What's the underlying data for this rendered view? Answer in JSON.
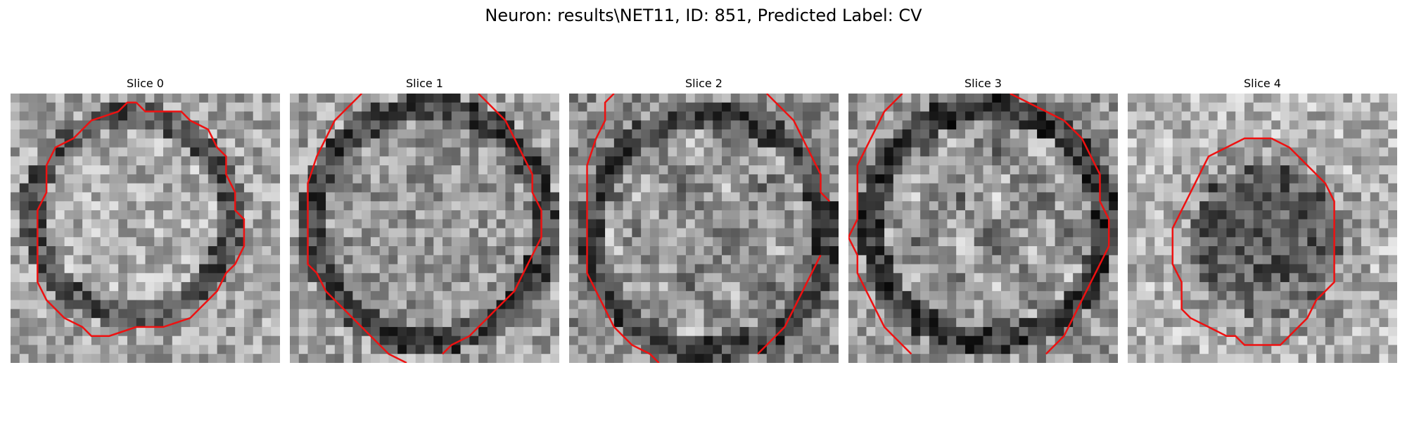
{
  "figure": {
    "title": "Neuron: results\\NET11, ID: 851, Predicted Label: CV",
    "contour_color": "#ee1111",
    "colormap": "gray",
    "grid_size": 30
  },
  "slices": [
    {
      "title": "Slice 0",
      "center_brightness": "bright",
      "ring": "dark",
      "seed": 11
    },
    {
      "title": "Slice 1",
      "center_brightness": "medium",
      "ring": "dark",
      "seed": 23
    },
    {
      "title": "Slice 2",
      "center_brightness": "mixed",
      "ring": "dark",
      "seed": 37
    },
    {
      "title": "Slice 3",
      "center_brightness": "mixed",
      "ring": "dark",
      "seed": 41
    },
    {
      "title": "Slice 4",
      "center_brightness": "dark",
      "ring": "light",
      "seed": 53
    }
  ]
}
